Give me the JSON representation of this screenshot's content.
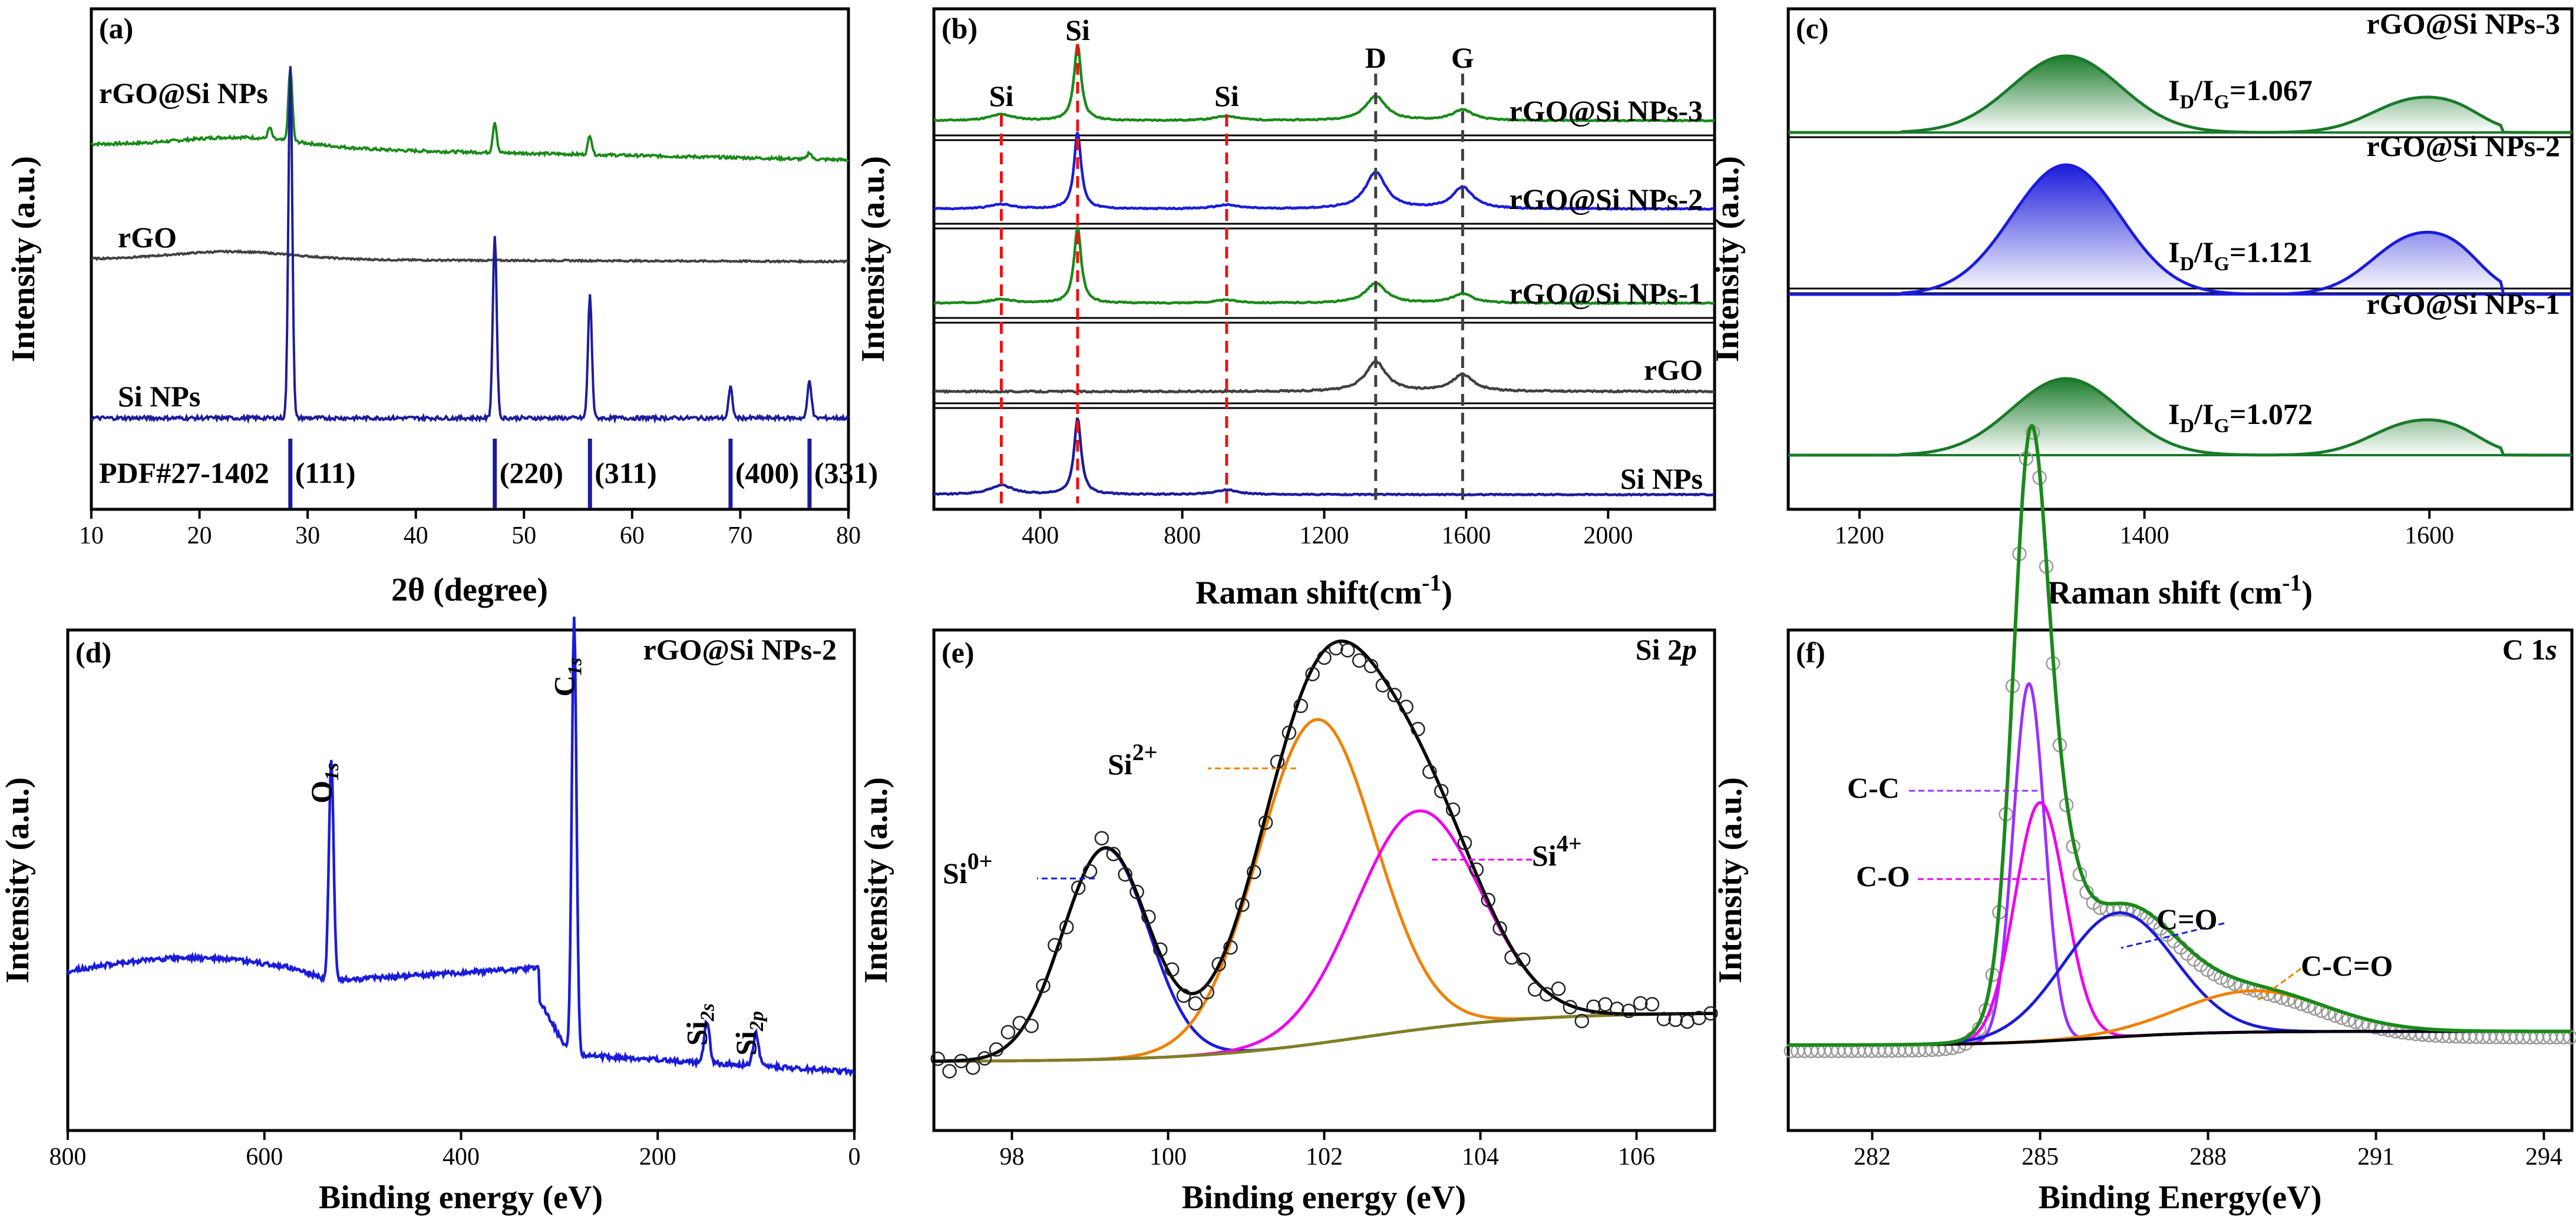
{
  "chart_data": [
    {
      "panel": "(a)",
      "type": "line",
      "xlabel": "2θ (degree)",
      "ylabel": "Intensity (a.u.)",
      "xlim": [
        10,
        80
      ],
      "xticks": [
        10,
        20,
        30,
        40,
        50,
        60,
        70,
        80
      ],
      "colors": {
        "rgo_si": "#1a8a1a",
        "rgo": "#404040",
        "si": "#1c1c9c",
        "pdf": "#1c1c9c"
      },
      "series": [
        {
          "name": "rGO@Si NPs",
          "baseline_intensity": 1.0,
          "broad_hump_center": 24,
          "peaks": [
            [
              26.5,
              0.2
            ],
            [
              28.4,
              1.3
            ],
            [
              47.3,
              0.55
            ],
            [
              56.1,
              0.35
            ],
            [
              76.4,
              0.12
            ]
          ]
        },
        {
          "name": "rGO",
          "baseline_intensity": 0.5,
          "broad_hump_center": 23,
          "peaks": []
        },
        {
          "name": "Si NPs",
          "baseline_intensity": 0.1,
          "broad_hump_center": null,
          "peaks": [
            [
              28.4,
              4.6
            ],
            [
              47.3,
              2.4
            ],
            [
              56.1,
              1.6
            ],
            [
              69.1,
              0.4
            ],
            [
              76.4,
              0.5
            ]
          ]
        }
      ],
      "reference": {
        "label": "PDF#27-1402",
        "lines": [
          [
            28.4,
            "(111)"
          ],
          [
            47.3,
            "(220)"
          ],
          [
            56.1,
            "(311)"
          ],
          [
            69.1,
            "(400)"
          ],
          [
            76.4,
            "(331)"
          ]
        ]
      }
    },
    {
      "panel": "(b)",
      "type": "line",
      "xlabel": "Raman shift(cm",
      "xlabel_sup": "-1",
      "xlabel_tail": ")",
      "ylabel": "Intensity (a.u.)",
      "xlim": [
        100,
        2300
      ],
      "xticks": [
        400,
        800,
        1200,
        1600,
        2000
      ],
      "markers_si": [
        {
          "x": 290,
          "label": "Si"
        },
        {
          "x": 505,
          "label": "Si"
        },
        {
          "x": 925,
          "label": "Si"
        }
      ],
      "markers_carbon": [
        {
          "x": 1345,
          "label": "D"
        },
        {
          "x": 1590,
          "label": "G"
        }
      ],
      "series": [
        {
          "name": "rGO@Si NPs-3",
          "color": "#1a8a1a",
          "peaks": [
            [
              290,
              0.08
            ],
            [
              505,
              1.0
            ],
            [
              925,
              0.06
            ],
            [
              1345,
              0.32
            ],
            [
              1590,
              0.14
            ]
          ]
        },
        {
          "name": "rGO@Si NPs-2",
          "color": "#1b1bdb",
          "peaks": [
            [
              290,
              0.06
            ],
            [
              505,
              1.0
            ],
            [
              925,
              0.05
            ],
            [
              1345,
              0.48
            ],
            [
              1590,
              0.28
            ]
          ]
        },
        {
          "name": "rGO@Si NPs-1",
          "color": "#1a8a1a",
          "peaks": [
            [
              290,
              0.05
            ],
            [
              505,
              1.0
            ],
            [
              925,
              0.04
            ],
            [
              1345,
              0.26
            ],
            [
              1590,
              0.12
            ]
          ]
        },
        {
          "name": "rGO",
          "color": "#404040",
          "peaks": [
            [
              1345,
              0.3
            ],
            [
              1590,
              0.17
            ]
          ]
        },
        {
          "name": "Si NPs",
          "color": "#1c1c9c",
          "peaks": [
            [
              290,
              0.12
            ],
            [
              505,
              1.0
            ],
            [
              925,
              0.06
            ]
          ]
        }
      ]
    },
    {
      "panel": "(c)",
      "type": "area",
      "xlabel": "Raman shift (cm",
      "xlabel_sup": "-1",
      "xlabel_tail": ")",
      "ylabel": "Intensity (a.u.)",
      "xlim": [
        1150,
        1700
      ],
      "xticks": [
        1200,
        1400,
        1600
      ],
      "series": [
        {
          "name": "rGO@Si NPs-3",
          "color": "#1a7a2a",
          "ratio_label": "I",
          "ratio_sub1": "D",
          "ratio_mid": "/I",
          "ratio_sub2": "G",
          "ratio_value": "=1.067",
          "d_peak": [
            1345,
            1.0
          ],
          "g_peak": [
            1590,
            0.5
          ]
        },
        {
          "name": "rGO@Si NPs-2",
          "color": "#1b1bdb",
          "ratio_label": "I",
          "ratio_sub1": "D",
          "ratio_mid": "/I",
          "ratio_sub2": "G",
          "ratio_value": "=1.121",
          "d_peak": [
            1345,
            1.0
          ],
          "g_peak": [
            1590,
            0.52
          ]
        },
        {
          "name": "rGO@Si NPs-1",
          "color": "#1a7a2a",
          "ratio_label": "I",
          "ratio_sub1": "D",
          "ratio_mid": "/I",
          "ratio_sub2": "G",
          "ratio_value": "=1.072",
          "d_peak": [
            1345,
            1.0
          ],
          "g_peak": [
            1590,
            0.5
          ]
        }
      ]
    },
    {
      "panel": "(d)",
      "type": "line",
      "title": "rGO@Si NPs-2",
      "xlabel": "Binding energy (eV)",
      "ylabel": "Intensity (a.u.)",
      "xlim": [
        800,
        0
      ],
      "xticks": [
        800,
        600,
        400,
        200,
        0
      ],
      "color": "#1b1bdb",
      "peaks": [
        {
          "x": 532,
          "height": 0.48,
          "label": "O",
          "sub": "1s"
        },
        {
          "x": 285,
          "height": 0.95,
          "label": "C",
          "sub": "1s"
        },
        {
          "x": 150,
          "height": 0.09,
          "label": "Si",
          "sub": "2s"
        },
        {
          "x": 100,
          "height": 0.07,
          "label": "Si",
          "sub": "2p"
        }
      ]
    },
    {
      "panel": "(e)",
      "type": "scatter",
      "title": "Si 2",
      "title_italic": "p",
      "xlabel": "Binding energy (eV)",
      "ylabel": "Intensity (a.u.)",
      "xlim": [
        97,
        107
      ],
      "xticks": [
        98,
        100,
        102,
        104,
        106
      ],
      "components": [
        {
          "name": "Si",
          "sup": "0+",
          "center": 99.2,
          "height": 0.56,
          "width": 0.55,
          "color": "#1b1bdb"
        },
        {
          "name": "Si",
          "sup": "2+",
          "center": 101.9,
          "height": 0.86,
          "width": 0.75,
          "color": "#f08000"
        },
        {
          "name": "Si",
          "sup": "4+",
          "center": 103.2,
          "height": 0.58,
          "width": 0.8,
          "color": "#ee00ee"
        }
      ],
      "envelope_color": "#000000",
      "background_color": "#808020"
    },
    {
      "panel": "(f)",
      "type": "scatter",
      "title": "C 1",
      "title_italic": "s",
      "xlabel": "Binding Energy(eV)",
      "ylabel": "Intensity (a.u.)",
      "xlim": [
        280.5,
        294.5
      ],
      "xticks": [
        282,
        285,
        288,
        291,
        294
      ],
      "components": [
        {
          "name": "C-C",
          "center": 284.8,
          "height": 0.78,
          "width": 0.28,
          "color": "#9b30ff"
        },
        {
          "name": "C-O",
          "center": 285.0,
          "height": 0.52,
          "width": 0.45,
          "color": "#ee00ee"
        },
        {
          "name": "C=O",
          "center": 286.4,
          "height": 0.27,
          "width": 1.0,
          "color": "#1b1bdb"
        },
        {
          "name": "C-C=O",
          "center": 288.8,
          "height": 0.09,
          "width": 1.3,
          "color": "#f08000"
        }
      ],
      "envelope_color": "#1a8a1a",
      "background_color": "#000000"
    }
  ]
}
